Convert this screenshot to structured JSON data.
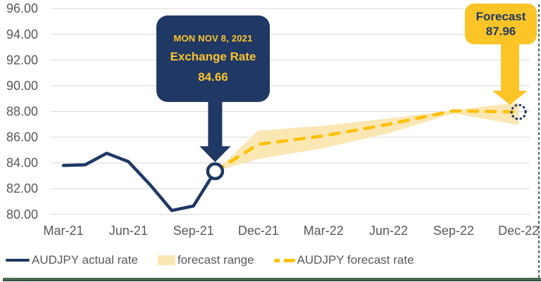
{
  "chart_data": {
    "type": "line",
    "title": "",
    "x_categories": [
      "Mar-21",
      "Apr-21",
      "May-21",
      "Jun-21",
      "Jul-21",
      "Aug-21",
      "Sep-21",
      "Oct-21",
      "Nov-21",
      "Dec-21",
      "Jan-22",
      "Feb-22",
      "Mar-22",
      "Apr-22",
      "May-22",
      "Jun-22",
      "Jul-22",
      "Aug-22",
      "Sep-22",
      "Oct-22",
      "Nov-22",
      "Dec-22"
    ],
    "xtick_labels": [
      "Mar-21",
      "Jun-21",
      "Sep-21",
      "Dec-21",
      "Mar-22",
      "Jun-22",
      "Sep-22",
      "Dec-22"
    ],
    "ytick_labels": [
      "96.00",
      "94.00",
      "92.00",
      "90.00",
      "88.00",
      "86.00",
      "84.00",
      "82.00",
      "80.00"
    ],
    "ylim": [
      80,
      96
    ],
    "ytick_step": 2,
    "grid": true,
    "legend_position": "bottom-left",
    "series": [
      {
        "name": "AUDJPY actual rate",
        "style": "solid",
        "color": "#1F3864",
        "points": [
          [
            "Mar-21",
            83.8
          ],
          [
            "Apr-21",
            83.85
          ],
          [
            "May-21",
            84.75
          ],
          [
            "Jun-21",
            84.1
          ],
          [
            "Jul-21",
            82.3
          ],
          [
            "Aug-21",
            80.3
          ],
          [
            "Sep-21",
            80.65
          ],
          [
            "Oct-21",
            83.35
          ]
        ]
      },
      {
        "name": "AUDJPY forecast rate",
        "style": "dashed",
        "color": "#FFC000",
        "points": [
          [
            "Oct-21",
            83.35
          ],
          [
            "Dec-21",
            85.45
          ],
          [
            "Mar-22",
            86.1
          ],
          [
            "Jun-22",
            87.0
          ],
          [
            "Sep-22",
            88.05
          ],
          [
            "Dec-22",
            87.96
          ]
        ]
      }
    ],
    "forecast_range": {
      "name": "forecast range",
      "color": "#FAE7B4",
      "points": [
        [
          "Oct-21",
          83.35,
          83.35
        ],
        [
          "Dec-21",
          84.3,
          86.5
        ],
        [
          "Mar-22",
          85.15,
          86.9
        ],
        [
          "Jun-22",
          86.3,
          87.45
        ],
        [
          "Sep-22",
          87.85,
          88.1
        ],
        [
          "Dec-22",
          86.95,
          88.7
        ]
      ]
    },
    "markers": {
      "junction": {
        "x": "Oct-21",
        "value_label": "84.66",
        "shape": "open-circle"
      },
      "endpoint": {
        "x": "Dec-22",
        "value_label": "87.96",
        "shape": "dotted-circle"
      }
    }
  },
  "annotations": {
    "exchange_rate_callout": {
      "date": "MON NOV 8, 2021",
      "label": "Exchange Rate",
      "value": "84.66",
      "bg": "#1F3864",
      "text_color": "#FFC42E"
    },
    "forecast_callout": {
      "label": "Forecast",
      "value": "87.96",
      "bg": "#FDC428",
      "text_color": "#1F3864"
    }
  },
  "legend": {
    "items": [
      {
        "label": "AUDJPY actual rate",
        "swatch": "navy-line"
      },
      {
        "label": "forecast range",
        "swatch": "yellow-band"
      },
      {
        "label": "AUDJPY forecast rate",
        "swatch": "yellow-dashes"
      }
    ]
  },
  "colors": {
    "navy": "#1F3864",
    "gold": "#FFC000",
    "band": "#FAE7B4",
    "callout_yellow": "#FDC428",
    "callout_text_gold": "#FFC42E",
    "grid": "#D9D9D9",
    "axis_text": "#595959",
    "border_dash": "#4E6A57",
    "bottom_strip_green": "#4D6B54"
  }
}
